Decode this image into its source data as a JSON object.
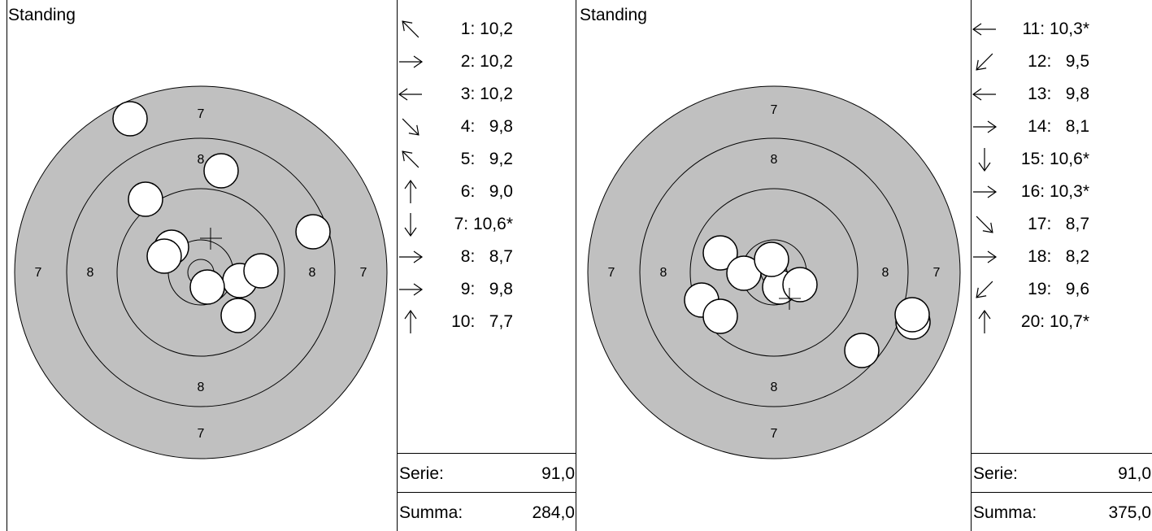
{
  "panels": [
    {
      "title": "Standing",
      "ring_labels": [
        "7",
        "8",
        "8",
        "7",
        "7",
        "8",
        "8",
        "7"
      ],
      "shots": [
        {
          "label": "1: 10,2",
          "arrow": "up-left"
        },
        {
          "label": "2: 10,2",
          "arrow": "right"
        },
        {
          "label": "3: 10,2",
          "arrow": "left"
        },
        {
          "label": "4:   9,8",
          "arrow": "down-right"
        },
        {
          "label": "5:   9,2",
          "arrow": "up-left"
        },
        {
          "label": "6:   9,0",
          "arrow": "up"
        },
        {
          "label": "7: 10,6*",
          "arrow": "down"
        },
        {
          "label": "8:   8,7",
          "arrow": "right"
        },
        {
          "label": "9:   9,8",
          "arrow": "right"
        },
        {
          "label": "10:   7,7",
          "arrow": "up"
        }
      ],
      "serie_label": "Serie:",
      "serie_value": "91,0",
      "summa_label": "Summa:",
      "summa_value": "284,0"
    },
    {
      "title": "Standing",
      "ring_labels": [
        "7",
        "8",
        "8",
        "7",
        "7",
        "8",
        "8",
        "7"
      ],
      "shots": [
        {
          "label": "11: 10,3*",
          "arrow": "left"
        },
        {
          "label": "12:   9,5",
          "arrow": "down-left"
        },
        {
          "label": "13:   9,8",
          "arrow": "left"
        },
        {
          "label": "14:   8,1",
          "arrow": "right"
        },
        {
          "label": "15: 10,6*",
          "arrow": "down"
        },
        {
          "label": "16: 10,3*",
          "arrow": "right"
        },
        {
          "label": "17:   8,7",
          "arrow": "down-right"
        },
        {
          "label": "18:   8,2",
          "arrow": "right"
        },
        {
          "label": "19:   9,6",
          "arrow": "down-left"
        },
        {
          "label": "20: 10,7*",
          "arrow": "up"
        }
      ],
      "serie_label": "Serie:",
      "serie_value": "91,0",
      "summa_label": "Summa:",
      "summa_value": "375,0"
    }
  ],
  "colors": {
    "target_fill": "#c0c0c0",
    "shot_fill": "#ffffff",
    "line": "#000000"
  }
}
